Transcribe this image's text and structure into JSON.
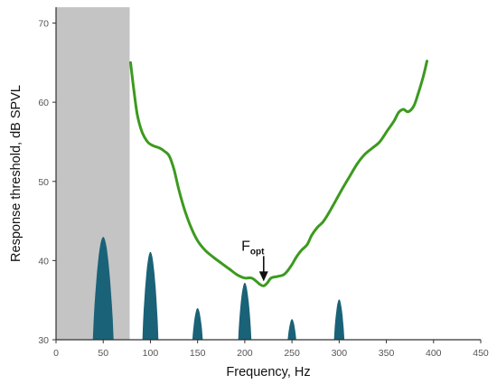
{
  "chart_data": {
    "type": "line",
    "xlabel": "Frequency, Hz",
    "ylabel": "Response threshold, dB SPVL",
    "xlim": [
      0,
      450
    ],
    "ylim": [
      30,
      72
    ],
    "x_ticks": [
      "0",
      "50",
      "100",
      "150",
      "200",
      "250",
      "300",
      "350",
      "400",
      "450"
    ],
    "y_ticks": [
      "30",
      "40",
      "50",
      "60",
      "70"
    ],
    "shaded_region": {
      "x_from": 0,
      "x_to": 78,
      "color": "#c4c4c4"
    },
    "series": [
      {
        "kind": "line",
        "color": "#3c9a1e",
        "points": [
          [
            79,
            65
          ],
          [
            82,
            62
          ],
          [
            86,
            58.5
          ],
          [
            91,
            56.3
          ],
          [
            97,
            55
          ],
          [
            103,
            54.5
          ],
          [
            110,
            54.2
          ],
          [
            115,
            53.8
          ],
          [
            120,
            53.2
          ],
          [
            125,
            51.5
          ],
          [
            130,
            49
          ],
          [
            136,
            46.5
          ],
          [
            143,
            44.2
          ],
          [
            150,
            42.5
          ],
          [
            158,
            41.3
          ],
          [
            167,
            40.4
          ],
          [
            176,
            39.6
          ],
          [
            184,
            38.9
          ],
          [
            192,
            38.2
          ],
          [
            200,
            37.8
          ],
          [
            207,
            37.8
          ],
          [
            212,
            37.4
          ],
          [
            216,
            37.0
          ],
          [
            220,
            36.8
          ],
          [
            224,
            37.2
          ],
          [
            228,
            37.8
          ],
          [
            235,
            38.0
          ],
          [
            241,
            38.2
          ],
          [
            246,
            38.8
          ],
          [
            250,
            39.5
          ],
          [
            255,
            40.5
          ],
          [
            260,
            41.3
          ],
          [
            266,
            42.0
          ],
          [
            271,
            43.2
          ],
          [
            277,
            44.2
          ],
          [
            283,
            44.9
          ],
          [
            289,
            46.0
          ],
          [
            296,
            47.5
          ],
          [
            303,
            49.0
          ],
          [
            311,
            50.6
          ],
          [
            319,
            52.2
          ],
          [
            327,
            53.4
          ],
          [
            335,
            54.2
          ],
          [
            343,
            55.0
          ],
          [
            351,
            56.4
          ],
          [
            358,
            57.6
          ],
          [
            363,
            58.7
          ],
          [
            368,
            59.1
          ],
          [
            373,
            58.8
          ],
          [
            379,
            59.5
          ],
          [
            384,
            61.2
          ],
          [
            389,
            63.2
          ],
          [
            393,
            65.2
          ]
        ]
      },
      {
        "kind": "peaks",
        "color": "#1a6278",
        "peaks": [
          {
            "center": 50,
            "height": 43.0,
            "half_width": 11
          },
          {
            "center": 100,
            "height": 41.1,
            "half_width": 8.5
          },
          {
            "center": 150,
            "height": 34.0,
            "half_width": 5.5
          },
          {
            "center": 200,
            "height": 37.2,
            "half_width": 7
          },
          {
            "center": 250,
            "height": 32.6,
            "half_width": 4.5
          },
          {
            "center": 300,
            "height": 35.1,
            "half_width": 5.5
          }
        ]
      }
    ],
    "annotations": [
      {
        "text": "F",
        "subscript": "opt",
        "x": 220,
        "y": 36.8
      }
    ]
  }
}
